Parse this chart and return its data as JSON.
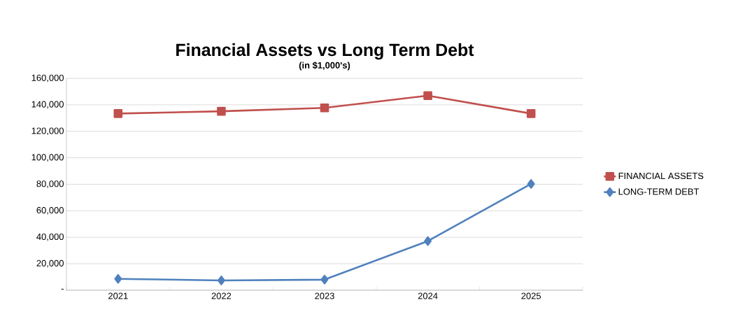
{
  "chart_data": {
    "type": "line",
    "title": "Financial Assets vs Long Term Debt",
    "subtitle": "(in $1,000's)",
    "categories": [
      "2021",
      "2022",
      "2023",
      "2024",
      "2025"
    ],
    "series": [
      {
        "name": "FINANCIAL ASSETS",
        "color": "#c0504d",
        "marker": "square",
        "values": [
          133400,
          135100,
          137700,
          146900,
          133400
        ]
      },
      {
        "name": "LONG-TERM DEBT",
        "color": "#4f81bd",
        "marker": "diamond",
        "values": [
          8600,
          7400,
          8000,
          37100,
          80300
        ]
      }
    ],
    "ylim": [
      0,
      160000
    ],
    "yticks": [
      {
        "value": 0,
        "label": "-"
      },
      {
        "value": 20000,
        "label": "20,000"
      },
      {
        "value": 40000,
        "label": "40,000"
      },
      {
        "value": 60000,
        "label": "60,000"
      },
      {
        "value": 80000,
        "label": "80,000"
      },
      {
        "value": 100000,
        "label": "100,000"
      },
      {
        "value": 120000,
        "label": "120,000"
      },
      {
        "value": 140000,
        "label": "140,000"
      },
      {
        "value": 160000,
        "label": "160,000"
      }
    ],
    "grid": "y",
    "legend": "right",
    "line_style": "solid"
  }
}
